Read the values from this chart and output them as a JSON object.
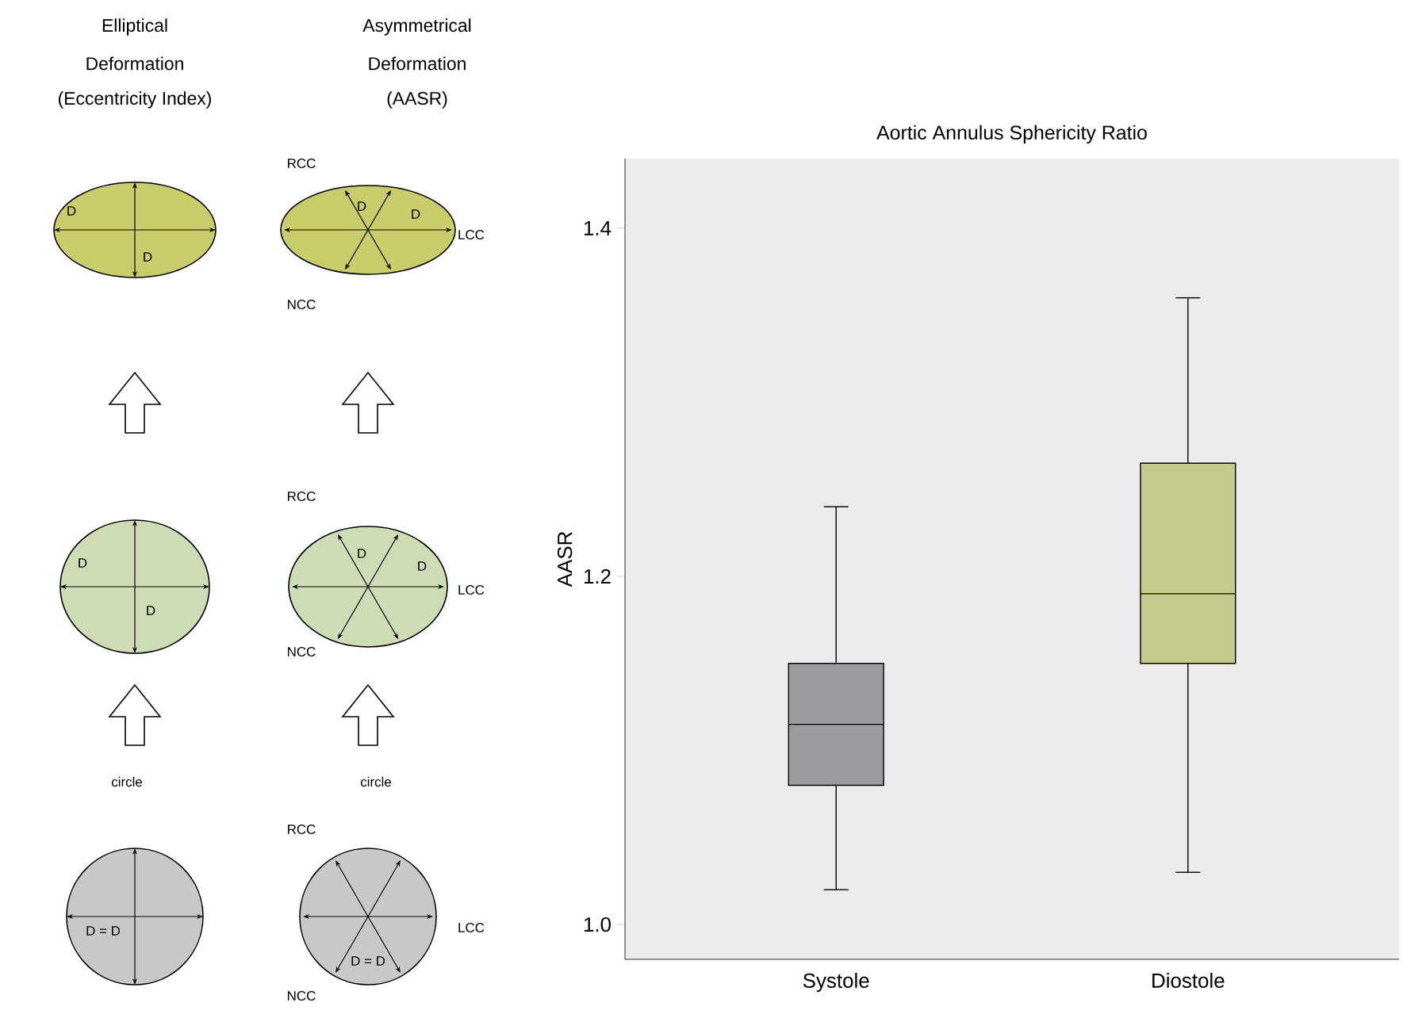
{
  "chart_data": {
    "type": "box",
    "title": "Aortic Annulus Sphericity Ratio",
    "ylabel": "AASR",
    "categories": [
      "Systole",
      "Diostole"
    ],
    "boxes": [
      {
        "low": 1.02,
        "q1": 1.08,
        "median": 1.115,
        "q3": 1.15,
        "high": 1.24
      },
      {
        "low": 1.03,
        "q1": 1.15,
        "median": 1.19,
        "q3": 1.265,
        "high": 1.36
      }
    ],
    "colors": [
      "#9b9c9f",
      "#c6c98c"
    ],
    "ylim": [
      0.98,
      1.44
    ],
    "yticks": [
      {
        "value": 1.0,
        "label": "1.0"
      },
      {
        "value": 1.2,
        "label": "1.2"
      },
      {
        "value": 1.4,
        "label": "1.4"
      }
    ],
    "annotations": [
      "Elliptical",
      "Deformation",
      "(Eccentricity Index)",
      "Asymmetrical",
      "Deformation",
      "(AASR)",
      "RCC",
      "D",
      "D",
      "D",
      "D",
      "LCC",
      "NCC",
      "RCC",
      "D",
      "D",
      "D",
      "D",
      "LCC",
      "NCC",
      "circle",
      "circle",
      "RCC",
      "D = D",
      "LCC",
      "D = D",
      "NCC"
    ]
  }
}
